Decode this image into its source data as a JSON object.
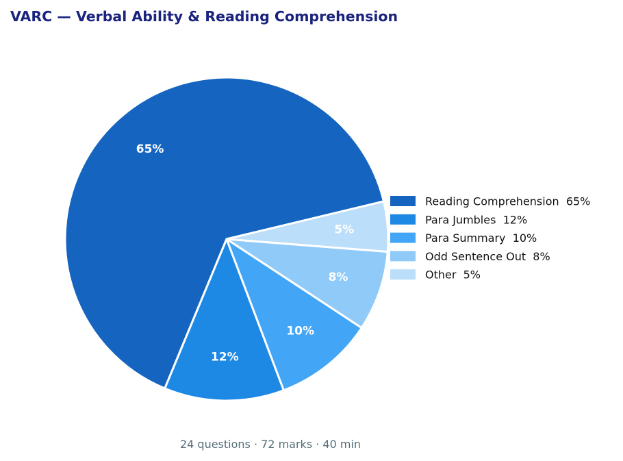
{
  "chart_data": {
    "type": "pie",
    "title": "VARC — Verbal Ability & Reading Comprehension",
    "footer": "24 questions · 72 marks · 40 min",
    "legend_position": "right",
    "slices": [
      {
        "label": "Reading Comprehension",
        "value": 65,
        "value_label": "65%",
        "legend_text": "Reading Comprehension  65%",
        "color": "#1565c0"
      },
      {
        "label": "Para Jumbles",
        "value": 12,
        "value_label": "12%",
        "legend_text": "Para Jumbles  12%",
        "color": "#1e88e5"
      },
      {
        "label": "Para Summary",
        "value": 10,
        "value_label": "10%",
        "legend_text": "Para Summary  10%",
        "color": "#42a5f5"
      },
      {
        "label": "Odd Sentence Out",
        "value": 8,
        "value_label": "8%",
        "legend_text": "Odd Sentence Out  8%",
        "color": "#90caf9"
      },
      {
        "label": "Other",
        "value": 5,
        "value_label": "5%",
        "legend_text": "Other  5%",
        "color": "#bbdefb"
      }
    ]
  }
}
